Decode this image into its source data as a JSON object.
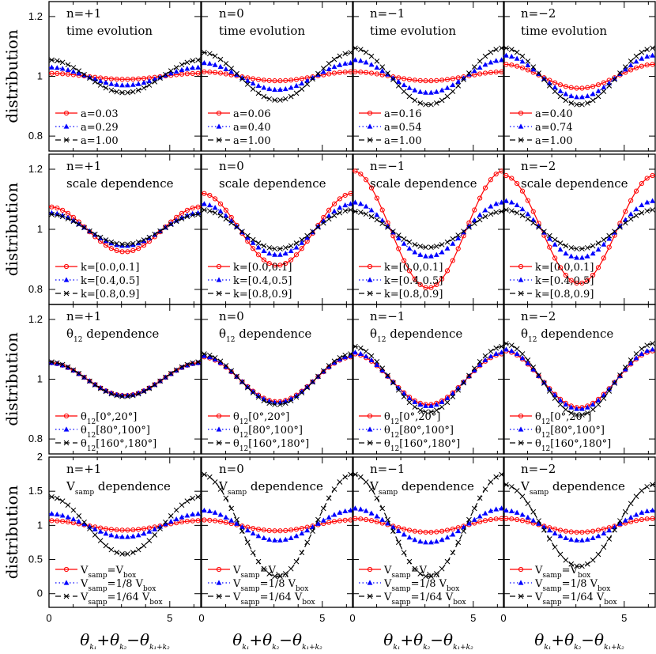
{
  "axes": {
    "ylabel": "distribution",
    "xlabel_main": "θ",
    "xlabel_sub": [
      "k₁",
      "k₂",
      "k₁+k₂"
    ],
    "xlabel_ops": [
      "+θ",
      "−θ"
    ],
    "xticks": [
      "0",
      "5"
    ],
    "row_yticks": [
      [
        "0.8",
        "1",
        "1.2"
      ],
      [
        "0.8",
        "1",
        "1.2"
      ],
      [
        "0.8",
        "1",
        "1.2"
      ],
      [
        "0",
        "0.5",
        "1",
        "1.5",
        "2"
      ]
    ]
  },
  "legend_prefixes": {
    "row0": "a=",
    "row1": "k=",
    "row2_main": "θ",
    "row2_sub": "12",
    "row3_main": "V",
    "row3_sub": "samp"
  },
  "panel_titles": {
    "n": [
      "n=+1",
      "n=0",
      "n=−1",
      "n=−2"
    ],
    "row0": "time evolution",
    "row1": "scale dependence",
    "row2_main": "θ",
    "row2_sub": "12",
    "row2_rest": " dependence",
    "row3_main": "V",
    "row3_sub": "samp",
    "row3_rest": " dependence"
  },
  "chart_data": [
    {
      "type": "line",
      "row": "time evolution",
      "x_range": [
        0,
        6.2832
      ],
      "ylim": [
        0.75,
        1.25
      ],
      "panels": [
        {
          "n": "+1",
          "series": [
            {
              "name": "a=0.03",
              "amplitude": 0.01,
              "style": "red-circle-solid"
            },
            {
              "name": "a=0.29",
              "amplitude": 0.03,
              "style": "blue-triangle-dotted"
            },
            {
              "name": "a=1.00",
              "amplitude": 0.055,
              "style": "black-cross-dashed"
            }
          ]
        },
        {
          "n": "0",
          "series": [
            {
              "name": "a=0.06",
              "amplitude": 0.015,
              "style": "red-circle-solid"
            },
            {
              "name": "a=0.40",
              "amplitude": 0.045,
              "style": "blue-triangle-dotted"
            },
            {
              "name": "a=1.00",
              "amplitude": 0.08,
              "style": "black-cross-dashed"
            }
          ]
        },
        {
          "n": "−1",
          "series": [
            {
              "name": "a=0.16",
              "amplitude": 0.015,
              "style": "red-circle-solid"
            },
            {
              "name": "a=0.54",
              "amplitude": 0.055,
              "style": "blue-triangle-dotted"
            },
            {
              "name": "a=1.00",
              "amplitude": 0.095,
              "style": "black-cross-dashed"
            }
          ]
        },
        {
          "n": "−2",
          "series": [
            {
              "name": "a=0.40",
              "amplitude": 0.04,
              "style": "red-circle-solid"
            },
            {
              "name": "a=0.74",
              "amplitude": 0.07,
              "style": "blue-triangle-dotted"
            },
            {
              "name": "a=1.00",
              "amplitude": 0.095,
              "style": "black-cross-dashed"
            }
          ]
        }
      ]
    },
    {
      "type": "line",
      "row": "scale dependence",
      "x_range": [
        0,
        6.2832
      ],
      "ylim": [
        0.75,
        1.25
      ],
      "panels": [
        {
          "n": "+1",
          "series": [
            {
              "name": "k=[0.0,0.1]",
              "amplitude": 0.075,
              "style": "red-circle-solid"
            },
            {
              "name": "k=[0.4,0.5]",
              "amplitude": 0.055,
              "style": "blue-triangle-dotted"
            },
            {
              "name": "k=[0.8,0.9]",
              "amplitude": 0.05,
              "style": "black-cross-dashed"
            }
          ]
        },
        {
          "n": "0",
          "series": [
            {
              "name": "k=[0.0,0.1]",
              "amplitude": 0.12,
              "style": "red-circle-solid"
            },
            {
              "name": "k=[0.4,0.5]",
              "amplitude": 0.085,
              "style": "blue-triangle-dotted"
            },
            {
              "name": "k=[0.8,0.9]",
              "amplitude": 0.065,
              "style": "black-cross-dashed"
            }
          ]
        },
        {
          "n": "−1",
          "series": [
            {
              "name": "k=[0.0,0.1]",
              "amplitude": 0.195,
              "style": "red-circle-solid"
            },
            {
              "name": "k=[0.4,0.5]",
              "amplitude": 0.09,
              "style": "blue-triangle-dotted"
            },
            {
              "name": "k=[0.8,0.9]",
              "amplitude": 0.06,
              "style": "black-cross-dashed"
            }
          ]
        },
        {
          "n": "−2",
          "series": [
            {
              "name": "k=[0.0,0.1]",
              "amplitude": 0.18,
              "style": "red-circle-solid"
            },
            {
              "name": "k=[0.4,0.5]",
              "amplitude": 0.095,
              "style": "blue-triangle-dotted"
            },
            {
              "name": "k=[0.8,0.9]",
              "amplitude": 0.065,
              "style": "black-cross-dashed"
            }
          ]
        }
      ]
    },
    {
      "type": "line",
      "row": "θ12 dependence",
      "x_range": [
        0,
        6.2832
      ],
      "ylim": [
        0.75,
        1.25
      ],
      "panels": [
        {
          "n": "+1",
          "series": [
            {
              "name": "[0°,20°]",
              "amplitude": 0.055,
              "style": "red-circle-solid"
            },
            {
              "name": "[80°,100°]",
              "amplitude": 0.055,
              "style": "blue-triangle-dotted"
            },
            {
              "name": "[160°,180°]",
              "amplitude": 0.058,
              "style": "black-cross-dashed"
            }
          ]
        },
        {
          "n": "0",
          "series": [
            {
              "name": "[0°,20°]",
              "amplitude": 0.075,
              "style": "red-circle-solid"
            },
            {
              "name": "[80°,100°]",
              "amplitude": 0.078,
              "style": "blue-triangle-dotted"
            },
            {
              "name": "[160°,180°]",
              "amplitude": 0.085,
              "style": "black-cross-dashed"
            }
          ]
        },
        {
          "n": "−1",
          "series": [
            {
              "name": "[0°,20°]",
              "amplitude": 0.085,
              "style": "red-circle-solid"
            },
            {
              "name": "[80°,100°]",
              "amplitude": 0.09,
              "style": "blue-triangle-dotted"
            },
            {
              "name": "[160°,180°]",
              "amplitude": 0.11,
              "style": "black-cross-dashed"
            }
          ]
        },
        {
          "n": "−2",
          "series": [
            {
              "name": "[0°,20°]",
              "amplitude": 0.095,
              "style": "red-circle-solid"
            },
            {
              "name": "[80°,100°]",
              "amplitude": 0.1,
              "style": "blue-triangle-dotted"
            },
            {
              "name": "[160°,180°]",
              "amplitude": 0.12,
              "style": "black-cross-dashed"
            }
          ]
        }
      ]
    },
    {
      "type": "line",
      "row": "Vsamp dependence",
      "x_range": [
        0,
        6.2832
      ],
      "ylim": [
        -0.2,
        2.0
      ],
      "panels": [
        {
          "n": "+1",
          "series": [
            {
              "name": "=V",
              "name_tail": "box",
              "amplitude": 0.07,
              "style": "red-circle-solid"
            },
            {
              "name": "=1/8 V",
              "name_tail": "box",
              "amplitude": 0.17,
              "style": "blue-triangle-dotted"
            },
            {
              "name": "=1/64 V",
              "name_tail": "box",
              "amplitude": 0.42,
              "style": "black-cross-dashed"
            }
          ]
        },
        {
          "n": "0",
          "series": [
            {
              "name": "=V",
              "name_tail": "box",
              "amplitude": 0.08,
              "style": "red-circle-solid"
            },
            {
              "name": "=1/8 V",
              "name_tail": "box",
              "amplitude": 0.22,
              "style": "blue-triangle-dotted"
            },
            {
              "name": "=1/64 V",
              "name_tail": "box",
              "amplitude": 0.75,
              "style": "black-cross-dashed"
            }
          ]
        },
        {
          "n": "−1",
          "series": [
            {
              "name": "=V",
              "name_tail": "box",
              "amplitude": 0.1,
              "style": "red-circle-solid"
            },
            {
              "name": "=1/8 V",
              "name_tail": "box",
              "amplitude": 0.25,
              "style": "blue-triangle-dotted"
            },
            {
              "name": "=1/64 V",
              "name_tail": "box",
              "amplitude": 0.75,
              "style": "black-cross-dashed"
            }
          ]
        },
        {
          "n": "−2",
          "series": [
            {
              "name": "=V",
              "name_tail": "box",
              "amplitude": 0.1,
              "style": "red-circle-solid"
            },
            {
              "name": "=1/8 V",
              "name_tail": "box",
              "amplitude": 0.22,
              "style": "blue-triangle-dotted"
            },
            {
              "name": "=1/64 V",
              "name_tail": "box",
              "amplitude": 0.6,
              "style": "black-cross-dashed"
            }
          ]
        }
      ]
    }
  ],
  "colors": {
    "red": "#ff0000",
    "blue": "#0000ff",
    "black": "#000000"
  }
}
